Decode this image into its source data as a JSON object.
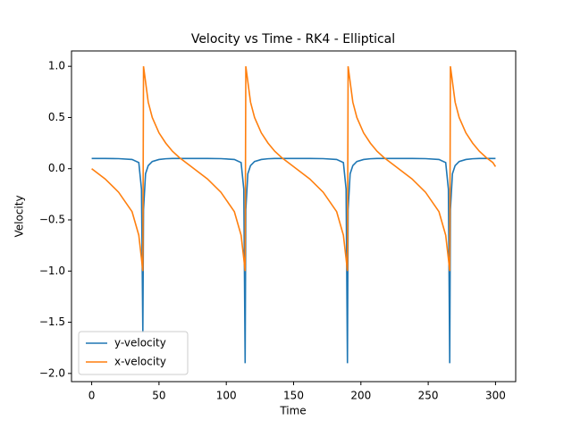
{
  "chart_data": {
    "type": "line",
    "title": "Velocity vs Time - RK4 - Elliptical",
    "x_label": "Time",
    "y_label": "Velocity",
    "x": [
      0,
      10,
      20,
      30,
      35,
      37,
      38,
      38.5,
      40,
      42,
      45,
      50,
      55,
      60,
      65,
      70,
      76,
      86,
      96,
      106,
      111,
      113,
      114,
      114.5,
      116,
      118,
      121,
      126,
      131,
      136,
      141,
      146,
      152,
      162,
      172,
      182,
      187,
      189,
      190,
      190.5,
      192,
      194,
      197,
      202,
      207,
      212,
      217,
      222,
      228,
      238,
      248,
      258,
      263,
      265,
      266,
      266.5,
      268,
      270,
      273,
      278,
      283,
      288,
      293,
      298,
      300
    ],
    "series": [
      {
        "name": "y-velocity",
        "color": "#1f77b4",
        "values": [
          0.1,
          0.1,
          0.098,
          0.09,
          0.06,
          -0.2,
          -1.6,
          -0.4,
          -0.05,
          0.03,
          0.07,
          0.09,
          0.097,
          0.1,
          0.1,
          0.1,
          0.1,
          0.1,
          0.098,
          0.09,
          0.06,
          -0.2,
          -1.9,
          -0.4,
          -0.05,
          0.03,
          0.07,
          0.09,
          0.097,
          0.1,
          0.1,
          0.1,
          0.1,
          0.1,
          0.098,
          0.09,
          0.06,
          -0.2,
          -1.9,
          -0.4,
          -0.05,
          0.03,
          0.07,
          0.09,
          0.097,
          0.1,
          0.1,
          0.1,
          0.1,
          0.1,
          0.098,
          0.09,
          0.06,
          -0.2,
          -1.9,
          -0.4,
          -0.05,
          0.03,
          0.07,
          0.09,
          0.097,
          0.1,
          0.1,
          0.1,
          0.1
        ]
      },
      {
        "name": "x-velocity",
        "color": "#ff7f0e",
        "values": [
          0,
          -0.1,
          -0.23,
          -0.42,
          -0.65,
          -0.88,
          -1.0,
          1.0,
          0.85,
          0.65,
          0.5,
          0.35,
          0.25,
          0.17,
          0.11,
          0.06,
          0,
          -0.1,
          -0.23,
          -0.42,
          -0.65,
          -0.88,
          -1.0,
          1.0,
          0.85,
          0.65,
          0.5,
          0.35,
          0.25,
          0.17,
          0.11,
          0.06,
          0,
          -0.1,
          -0.23,
          -0.42,
          -0.65,
          -0.88,
          -1.0,
          1.0,
          0.85,
          0.65,
          0.5,
          0.35,
          0.25,
          0.17,
          0.11,
          0.06,
          0,
          -0.1,
          -0.23,
          -0.42,
          -0.65,
          -0.88,
          -1.0,
          1.0,
          0.85,
          0.65,
          0.5,
          0.35,
          0.25,
          0.17,
          0.11,
          0.06,
          0.02
        ]
      }
    ],
    "xlim": [
      -15,
      315
    ],
    "xticks": [
      0,
      50,
      100,
      150,
      200,
      250,
      300
    ],
    "ylim": [
      -2.08,
      1.15
    ],
    "yticks": [
      {
        "value": 1,
        "label": "1.0"
      },
      {
        "value": 0.5,
        "label": "0.5"
      },
      {
        "value": 0,
        "label": "0.0"
      },
      {
        "value": -0.5,
        "label": "−0.5"
      },
      {
        "value": -1,
        "label": "−1.0"
      },
      {
        "value": -1.5,
        "label": "−1.5"
      },
      {
        "value": -2,
        "label": "−2.0"
      }
    ],
    "legend": "lower left"
  }
}
